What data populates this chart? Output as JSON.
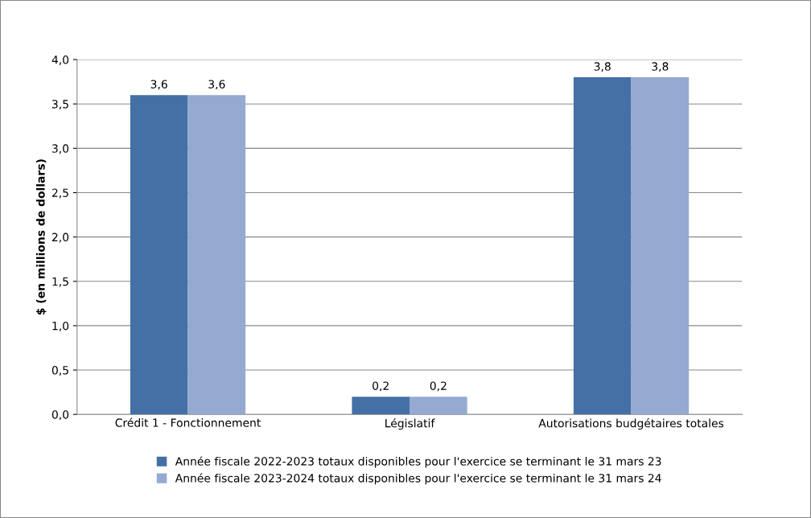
{
  "chart_data": {
    "type": "bar",
    "ylabel": "$ (en millions de dollars)",
    "categories": [
      "Crédit 1 - Fonctionnement",
      "Législatif",
      "Autorisations budgétaires totales"
    ],
    "series": [
      {
        "name": "Année fiscale 2022-2023 totaux disponibles pour l'exercice se terminant le 31 mars 23",
        "color": "#4470a5",
        "values": [
          3.6,
          0.2,
          3.8
        ],
        "value_labels": [
          "3,6",
          "0,2",
          "3,8"
        ]
      },
      {
        "name": "Année fiscale 2023-2024 totaux disponibles pour l'exercice se terminant le 31 mars 24",
        "color": "#95a9d1",
        "values": [
          3.6,
          0.2,
          3.8
        ],
        "value_labels": [
          "3,6",
          "0,2",
          "3,8"
        ]
      }
    ],
    "ylim": [
      0,
      4
    ],
    "yticks": [
      {
        "value": 0,
        "label": "0,0"
      },
      {
        "value": 0.5,
        "label": "0,5"
      },
      {
        "value": 1,
        "label": "1,0"
      },
      {
        "value": 1.5,
        "label": "1,5"
      },
      {
        "value": 2,
        "label": "2,0"
      },
      {
        "value": 2.5,
        "label": "2,5"
      },
      {
        "value": 3,
        "label": "3,0"
      },
      {
        "value": 3.5,
        "label": "3,5"
      },
      {
        "value": 4,
        "label": "4,0"
      }
    ],
    "grid": "y",
    "legend": "bottom"
  }
}
